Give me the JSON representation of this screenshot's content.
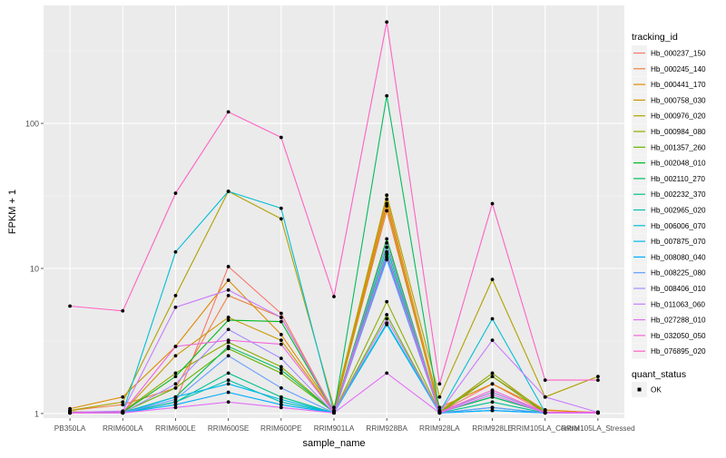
{
  "colors": {
    "panel_bg": "#EBEBEB",
    "grid_major": "#FFFFFF",
    "grid_minor": "#F5F5F5",
    "point": "#000000",
    "text": "#4D4D4D",
    "title": "#000000"
  },
  "chart_data": {
    "type": "line",
    "xlabel": "sample_name",
    "ylabel": "FPKM + 1",
    "y_scale": "log10",
    "ylim": [
      0.93,
      650
    ],
    "y_ticks": [
      1,
      10,
      100
    ],
    "y_tick_labels": [
      "1",
      "10",
      "100"
    ],
    "grid": true,
    "categories": [
      "PB350LA",
      "RRIM600LA",
      "RRIM600LE",
      "RRIM600SE",
      "RRIM600PE",
      "RRIM901LA",
      "RRIM928BA",
      "RRIM928LA",
      "RRIM928LE",
      "RRIM105LA_Control",
      "RRIM105LA_Stressed"
    ],
    "category_labels": [
      "PB350LA",
      "RRIM600LA",
      "RRIM600LE",
      "RRIM600SE",
      "RRIM600PE",
      "RRIM901LA",
      "RRIM928BA",
      "RRIM928LA",
      "RRIM928LE",
      "RRIM105LA_Control",
      "RRIM105LA_Stressed"
    ],
    "legend": {
      "title": "tracking_id",
      "position": "right"
    },
    "point_legend": {
      "title": "quant_status",
      "labels": [
        "OK"
      ]
    },
    "series": [
      {
        "name": "Hb_000237_150",
        "color": "#F8766D",
        "values": [
          1.02,
          1.01,
          1.2,
          10.3,
          4.9,
          1.02,
          28,
          1.02,
          1.6,
          1.02,
          1.01
        ]
      },
      {
        "name": "Hb_000245_140",
        "color": "#EE8042",
        "values": [
          1.05,
          1.15,
          1.5,
          6.5,
          4.6,
          1.04,
          25,
          1.05,
          1.8,
          1.05,
          1.02
        ]
      },
      {
        "name": "Hb_000441_170",
        "color": "#DE8C00",
        "values": [
          1.08,
          1.3,
          2.9,
          8.3,
          3.5,
          1.05,
          30,
          1.1,
          1.6,
          1.06,
          1.01
        ]
      },
      {
        "name": "Hb_000758_030",
        "color": "#C99800",
        "values": [
          1.03,
          1.02,
          2.5,
          4.6,
          3.2,
          1.03,
          27,
          1.03,
          1.4,
          1.02,
          1.02
        ]
      },
      {
        "name": "Hb_000976_020",
        "color": "#AFA100",
        "values": [
          1.05,
          1.2,
          6.5,
          34,
          22,
          1.1,
          32,
          1.3,
          8.4,
          1.3,
          1.8
        ]
      },
      {
        "name": "Hb_000984_080",
        "color": "#8EAB00",
        "values": [
          1.02,
          1.03,
          1.9,
          3.1,
          2.1,
          1.02,
          5.9,
          1.02,
          1.9,
          1.02,
          1.01
        ]
      },
      {
        "name": "Hb_001357_260",
        "color": "#64B200",
        "values": [
          1.01,
          1.02,
          1.5,
          2.8,
          1.9,
          1.02,
          4.8,
          1.01,
          1.8,
          1.01,
          1.01
        ]
      },
      {
        "name": "Hb_002048_010",
        "color": "#00B81F",
        "values": [
          1.01,
          1.02,
          1.8,
          4.4,
          4.3,
          1.02,
          16,
          1.02,
          1.3,
          1.02,
          1.01
        ]
      },
      {
        "name": "Hb_002110_270",
        "color": "#00BD5C",
        "values": [
          1.02,
          1.02,
          1.3,
          2.9,
          2.0,
          1.02,
          155,
          1.02,
          1.3,
          1.02,
          1.02
        ]
      },
      {
        "name": "Hb_002232_370",
        "color": "#00C08B",
        "values": [
          1.01,
          1.01,
          1.2,
          1.9,
          1.3,
          1.01,
          14,
          1.01,
          1.2,
          1.01,
          1.01
        ]
      },
      {
        "name": "Hb_002965_020",
        "color": "#00C1B2",
        "values": [
          1.01,
          1.01,
          1.2,
          1.7,
          1.2,
          1.01,
          13,
          1.01,
          1.1,
          1.01,
          1.01
        ]
      },
      {
        "name": "Hb_006006_070",
        "color": "#00BFD4",
        "values": [
          1.01,
          1.02,
          13,
          34,
          26,
          1.02,
          4.2,
          1.02,
          4.5,
          1.02,
          1.02
        ]
      },
      {
        "name": "Hb_007875_070",
        "color": "#00B8EE",
        "values": [
          1.01,
          1.01,
          1.3,
          1.6,
          1.25,
          1.01,
          4.1,
          1.01,
          1.05,
          1.01,
          1.01
        ]
      },
      {
        "name": "Hb_008080_040",
        "color": "#00ABFD",
        "values": [
          1.01,
          1.01,
          1.15,
          1.4,
          1.15,
          1.01,
          12,
          1.01,
          1.05,
          1.01,
          1.01
        ]
      },
      {
        "name": "Hb_008225_080",
        "color": "#619CFF",
        "values": [
          1.01,
          1.01,
          1.25,
          2.5,
          1.5,
          1.01,
          11.5,
          1.01,
          1.1,
          1.01,
          1.01
        ]
      },
      {
        "name": "Hb_008406_010",
        "color": "#A58AFF",
        "values": [
          1.01,
          1.01,
          1.6,
          3.8,
          2.4,
          1.01,
          15,
          1.02,
          1.4,
          1.02,
          1.01
        ]
      },
      {
        "name": "Hb_011063_060",
        "color": "#C77CFF",
        "values": [
          1.02,
          1.04,
          5.4,
          7.1,
          4.6,
          1.02,
          4.5,
          1.02,
          3.2,
          1.3,
          1.02
        ]
      },
      {
        "name": "Hb_027288_010",
        "color": "#E36EF6",
        "values": [
          1.01,
          1.01,
          1.1,
          1.2,
          1.1,
          1.01,
          1.9,
          1.01,
          1.35,
          1.01,
          1.01
        ]
      },
      {
        "name": "Hb_032050_050",
        "color": "#F265DA",
        "values": [
          1.01,
          1.02,
          2.9,
          3.2,
          3.0,
          1.02,
          12.5,
          1.02,
          1.45,
          1.02,
          1.02
        ]
      },
      {
        "name": "Hb_076895_020",
        "color": "#FF61C3",
        "values": [
          5.5,
          5.1,
          33,
          120,
          80,
          6.4,
          500,
          1.6,
          28,
          1.7,
          1.7
        ]
      }
    ]
  }
}
